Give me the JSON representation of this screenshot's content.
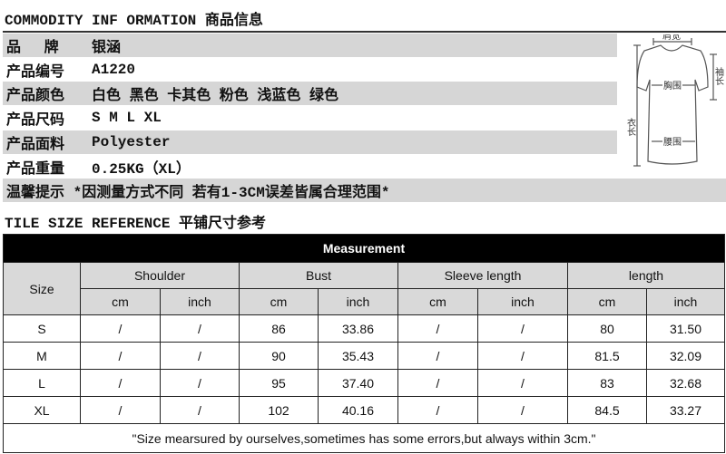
{
  "title": "COMMODITY INF ORMATION 商品信息",
  "info": [
    {
      "label": "品　 牌",
      "value": "银涵"
    },
    {
      "label": "产品编号",
      "value": "A1220"
    },
    {
      "label": "产品颜色",
      "value": "白色 黑色 卡其色 粉色 浅蓝色 绿色"
    },
    {
      "label": "产品尺码",
      "value": "S M L XL"
    },
    {
      "label": "产品面料",
      "value": "Polyester"
    },
    {
      "label": "产品重量",
      "value": "0.25KG（XL）"
    }
  ],
  "tip": "温馨提示 *因测量方式不同 若有1-3CM误差皆属合理范围*",
  "diagram": {
    "shoulder": "肩宽",
    "sleeve": "袖长",
    "bust": "胸围",
    "length": "衣长",
    "waist": "腰围"
  },
  "subtitle": "TILE SIZE REFERENCE 平铺尺寸参考",
  "table": {
    "header": "Measurement",
    "size_label": "Size",
    "groups": [
      "Shoulder",
      "Bust",
      "Sleeve length",
      "length"
    ],
    "units": [
      "cm",
      "inch",
      "cm",
      "inch",
      "cm",
      "inch",
      "cm",
      "inch"
    ],
    "rows": [
      [
        "S",
        "/",
        "/",
        "86",
        "33.86",
        "/",
        "/",
        "80",
        "31.50"
      ],
      [
        "M",
        "/",
        "/",
        "90",
        "35.43",
        "/",
        "/",
        "81.5",
        "32.09"
      ],
      [
        "L",
        "/",
        "/",
        "95",
        "37.40",
        "/",
        "/",
        "83",
        "32.68"
      ],
      [
        "XL",
        "/",
        "/",
        "102",
        "40.16",
        "/",
        "/",
        "84.5",
        "33.27"
      ]
    ],
    "footnote": "\"Size mearsured by ourselves,sometimes has some errors,but always within 3cm.\""
  }
}
